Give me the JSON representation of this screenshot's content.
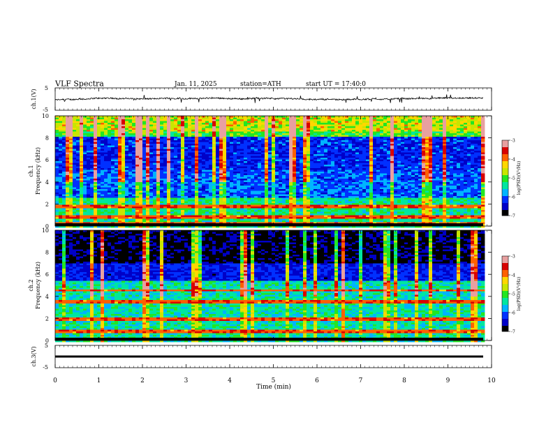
{
  "header": {
    "title": "VLF Spectra",
    "date": "Jan. 11, 2025",
    "station": "station=ATH",
    "start_ut": "start UT =  17:40:0"
  },
  "chart_data": [
    {
      "type": "line",
      "panel": "ch1-waveform",
      "ylabel": "ch.1(V)",
      "ylim": [
        -5,
        5
      ],
      "yticks": [
        "5",
        "-5"
      ],
      "xlim": [
        0,
        10
      ],
      "note_values": "noisy trace centered slightly below 0 V, roughly -1.5 to +1 V"
    },
    {
      "type": "heatmap",
      "panel": "ch1-spectrogram",
      "ylabel": "ch.1\nFrequency (kHz)",
      "ylim": [
        0,
        10
      ],
      "yticks": [
        "0",
        "2",
        "4",
        "6",
        "8",
        "10"
      ],
      "xlim": [
        0,
        9.8
      ],
      "colorbar": {
        "label": "log(PSD)(V²/Hz)",
        "range": [
          -7,
          -3
        ],
        "ticks": [
          "-3",
          "-4",
          "-5",
          "-6",
          "-7"
        ]
      }
    },
    {
      "type": "heatmap",
      "panel": "ch2-spectrogram",
      "ylabel": "ch.2\nFrequency (kHz)",
      "ylim": [
        0,
        10
      ],
      "yticks": [
        "0",
        "2",
        "4",
        "6",
        "8",
        "10"
      ],
      "xlim": [
        0,
        9.8
      ],
      "colorbar": {
        "label": "log(PSD)(V²/Hz)",
        "range": [
          -7,
          -3
        ],
        "ticks": [
          "-3",
          "-4",
          "-5",
          "-6",
          "-7"
        ]
      }
    },
    {
      "type": "line",
      "panel": "ch3-waveform",
      "ylabel": "ch.3(V)",
      "ylim": [
        -5,
        5
      ],
      "yticks": [
        "5",
        "-5"
      ],
      "xlim": [
        0,
        10
      ],
      "note_values": "flat thick trace at about -1.5 V"
    }
  ],
  "xaxis": {
    "label": "Time (min)",
    "ticks": [
      "0",
      "1",
      "2",
      "3",
      "4",
      "5",
      "6",
      "7",
      "8",
      "9",
      "10"
    ]
  },
  "colors": {
    "colormap": [
      "#000000",
      "#0000c8",
      "#0030ff",
      "#00b4ff",
      "#00e6a0",
      "#22e622",
      "#c8e600",
      "#ffd700",
      "#ff6000",
      "#d80000",
      "#e8a0a0",
      "#ffffff"
    ]
  }
}
